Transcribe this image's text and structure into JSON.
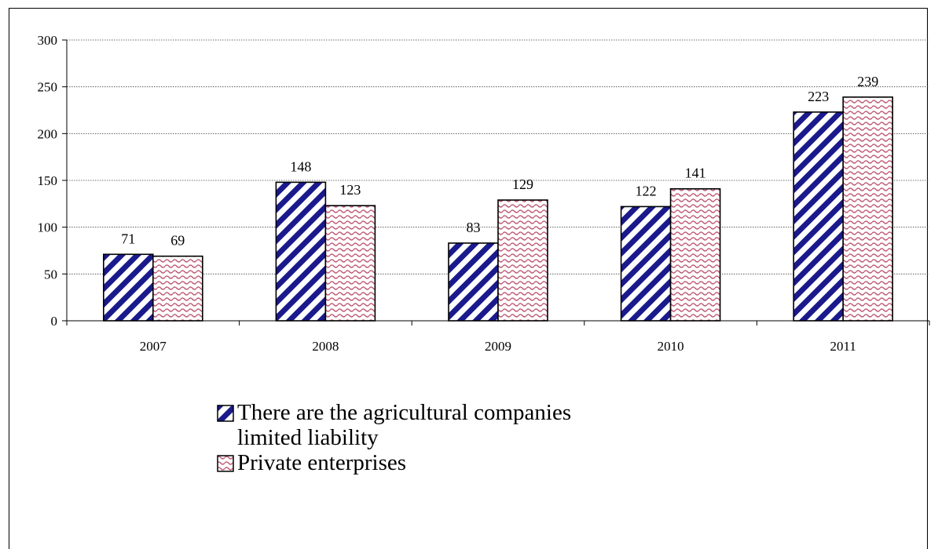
{
  "chart_data": {
    "type": "bar",
    "title": "",
    "xlabel": "",
    "ylabel": "",
    "categories": [
      "2007",
      "2008",
      "2009",
      "2010",
      "2011"
    ],
    "series": [
      {
        "name": "There are the agricultural companies limited liability",
        "values": [
          71,
          148,
          83,
          122,
          223
        ]
      },
      {
        "name": "Private enterprises",
        "values": [
          69,
          123,
          129,
          141,
          239
        ]
      }
    ],
    "ylim": [
      0,
      300
    ],
    "yticks": [
      0,
      50,
      100,
      150,
      200,
      250,
      300
    ],
    "grid": true,
    "legend_position": "bottom",
    "colors": {
      "series1_stripe": "#1a1a8c",
      "series2_wave": "#c0607a",
      "bar_border": "#000000"
    }
  }
}
